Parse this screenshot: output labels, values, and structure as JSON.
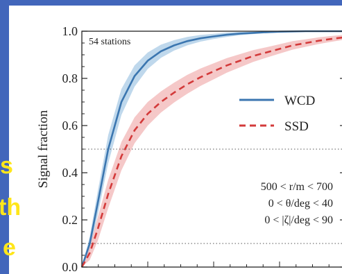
{
  "slide": {
    "side_text_fragments": [
      "s",
      "th",
      "e"
    ],
    "background_color": "#4266bb",
    "side_text_color": "#ffe61a"
  },
  "chart_data": {
    "type": "line",
    "ylabel": "Signal fraction",
    "xlabel": "",
    "ylim": [
      0.0,
      1.0
    ],
    "yticks": [
      0.0,
      0.2,
      0.4,
      0.6,
      0.8,
      1.0
    ],
    "ytick_labels": [
      "0.0",
      "0.2",
      "0.4",
      "0.6",
      "0.8",
      "1.0"
    ],
    "x_normalized": [
      0,
      0.03,
      0.06,
      0.1,
      0.15,
      0.2,
      0.25,
      0.3,
      0.35,
      0.4,
      0.45,
      0.5,
      0.55,
      0.6,
      0.65,
      0.7,
      0.75,
      0.8,
      0.85,
      0.9,
      0.95,
      1.0
    ],
    "series": [
      {
        "name": "WCD",
        "style": "solid",
        "color": "#3b76b0",
        "band_color": "#a9cbe6",
        "values": [
          0.0,
          0.1,
          0.27,
          0.5,
          0.7,
          0.81,
          0.875,
          0.915,
          0.94,
          0.958,
          0.97,
          0.978,
          0.985,
          0.99,
          0.993,
          0.996,
          0.998,
          0.999,
          1.0,
          1.0,
          1.0,
          1.0
        ],
        "band_width": [
          0.0,
          0.03,
          0.05,
          0.06,
          0.055,
          0.045,
          0.035,
          0.028,
          0.022,
          0.018,
          0.014,
          0.011,
          0.009,
          0.007,
          0.005,
          0.004,
          0.003,
          0.002,
          0.002,
          0.001,
          0.001,
          0.001
        ]
      },
      {
        "name": "SSD",
        "style": "dashed",
        "color": "#d33a3a",
        "band_color": "#f1b5b5",
        "values": [
          0.0,
          0.06,
          0.16,
          0.31,
          0.47,
          0.58,
          0.65,
          0.7,
          0.74,
          0.775,
          0.805,
          0.83,
          0.855,
          0.875,
          0.895,
          0.91,
          0.925,
          0.94,
          0.95,
          0.96,
          0.968,
          0.975
        ],
        "band_width": [
          0.0,
          0.03,
          0.05,
          0.06,
          0.06,
          0.055,
          0.05,
          0.045,
          0.042,
          0.04,
          0.037,
          0.034,
          0.031,
          0.028,
          0.025,
          0.022,
          0.02,
          0.018,
          0.016,
          0.014,
          0.012,
          0.01
        ]
      }
    ],
    "reference_lines": [
      0.5,
      0.1
    ],
    "annotations": {
      "stations": "54 stations",
      "ranges": [
        "500 < r/m < 700",
        "0 < θ/deg < 40",
        "0 < |ζ|/deg < 90"
      ]
    },
    "legend": {
      "placement": "right",
      "entries": [
        "WCD",
        "SSD"
      ]
    },
    "grid": false
  }
}
